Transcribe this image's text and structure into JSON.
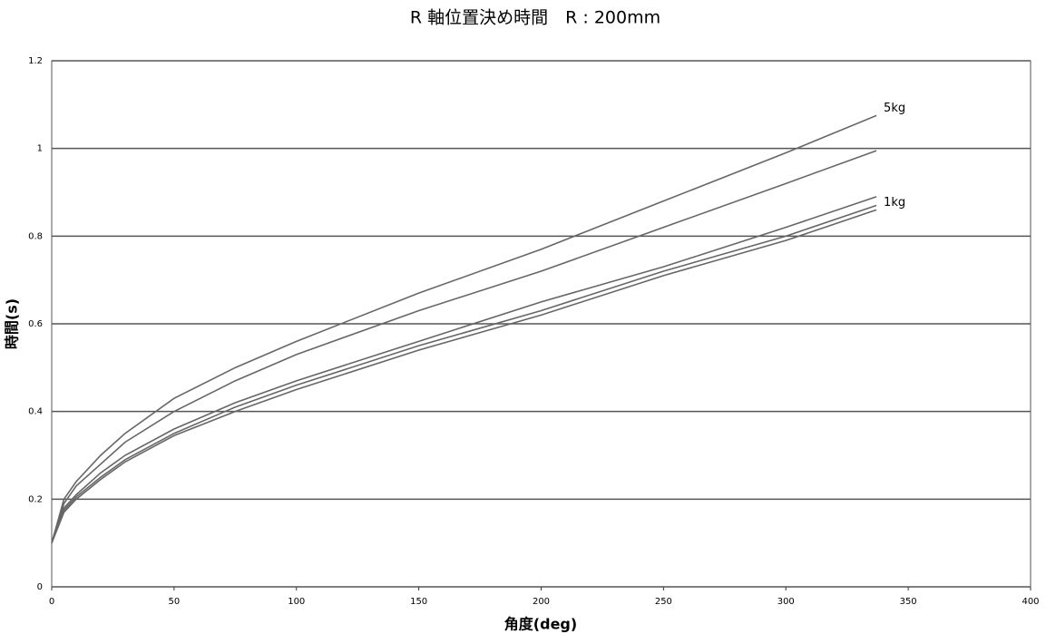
{
  "chart_data": {
    "type": "line",
    "title": "R 軸位置決め時間　R : 200mm",
    "x_label": "角度(deg)",
    "y_label": "時間(s)",
    "x": [
      0,
      5,
      10,
      20,
      30,
      50,
      75,
      100,
      150,
      200,
      250,
      300,
      337
    ],
    "series": [
      {
        "name": "5kg",
        "color": "#666666",
        "values": [
          0.1,
          0.2,
          0.24,
          0.3,
          0.35,
          0.43,
          0.5,
          0.56,
          0.67,
          0.77,
          0.88,
          0.99,
          1.075
        ]
      },
      {
        "color": "#666666",
        "values": [
          0.1,
          0.19,
          0.23,
          0.28,
          0.33,
          0.4,
          0.47,
          0.53,
          0.63,
          0.72,
          0.82,
          0.92,
          0.995
        ]
      },
      {
        "color": "#666666",
        "values": [
          0.1,
          0.18,
          0.21,
          0.26,
          0.3,
          0.36,
          0.42,
          0.47,
          0.56,
          0.65,
          0.73,
          0.82,
          0.89
        ]
      },
      {
        "color": "#666666",
        "values": [
          0.1,
          0.175,
          0.205,
          0.25,
          0.29,
          0.35,
          0.41,
          0.46,
          0.55,
          0.63,
          0.72,
          0.8,
          0.87
        ]
      },
      {
        "name": "1kg",
        "color": "#666666",
        "values": [
          0.1,
          0.17,
          0.2,
          0.245,
          0.285,
          0.345,
          0.4,
          0.45,
          0.54,
          0.62,
          0.71,
          0.79,
          0.86
        ]
      }
    ],
    "xlim": [
      0,
      400
    ],
    "xticks": [
      0,
      50,
      100,
      150,
      200,
      250,
      300,
      350,
      400
    ],
    "ylim": [
      0,
      1.2
    ],
    "yticks": [
      0,
      0.2,
      0.4,
      0.6,
      0.8,
      1,
      1.2
    ],
    "grid": true
  }
}
